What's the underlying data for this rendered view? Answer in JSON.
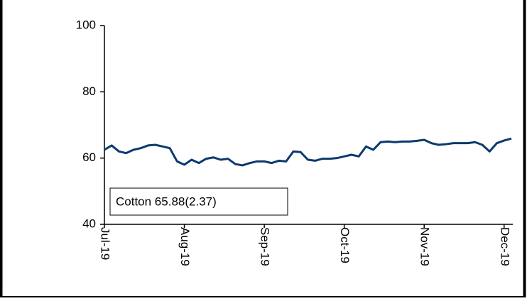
{
  "chart_data": {
    "type": "line",
    "annotation": "Cotton 65.88(2.37)",
    "categories": [
      "Jul-19",
      null,
      null,
      null,
      null,
      null,
      null,
      null,
      null,
      null,
      null,
      "Aug-19",
      null,
      null,
      null,
      null,
      null,
      null,
      null,
      null,
      null,
      null,
      "Sep-19",
      null,
      null,
      null,
      null,
      null,
      null,
      null,
      null,
      null,
      null,
      "Oct-19",
      null,
      null,
      null,
      null,
      null,
      null,
      null,
      null,
      null,
      null,
      "Nov-19",
      null,
      null,
      null,
      null,
      null,
      null,
      null,
      null,
      null,
      null,
      "Dec-19",
      null
    ],
    "series": [
      {
        "name": "Cotton",
        "color": "#0b3a6e",
        "values": [
          62.5,
          63.8,
          62,
          61.5,
          62.5,
          63,
          63.8,
          64,
          63.5,
          63,
          59,
          58,
          59.5,
          58.5,
          59.8,
          60.2,
          59.5,
          59.8,
          58.2,
          57.8,
          58.5,
          59,
          59,
          58.5,
          59.2,
          59,
          62,
          61.8,
          59.5,
          59.2,
          59.8,
          59.8,
          60,
          60.5,
          61,
          60.5,
          63.5,
          62.5,
          64.8,
          65,
          64.8,
          65,
          65,
          65.2,
          65.5,
          64.5,
          64,
          64.2,
          64.5,
          64.5,
          64.5,
          64.8,
          64,
          62,
          64.5,
          65.3,
          65.88
        ]
      }
    ],
    "ylim": [
      40,
      100
    ],
    "yticks": [
      40,
      60,
      80,
      100
    ]
  }
}
